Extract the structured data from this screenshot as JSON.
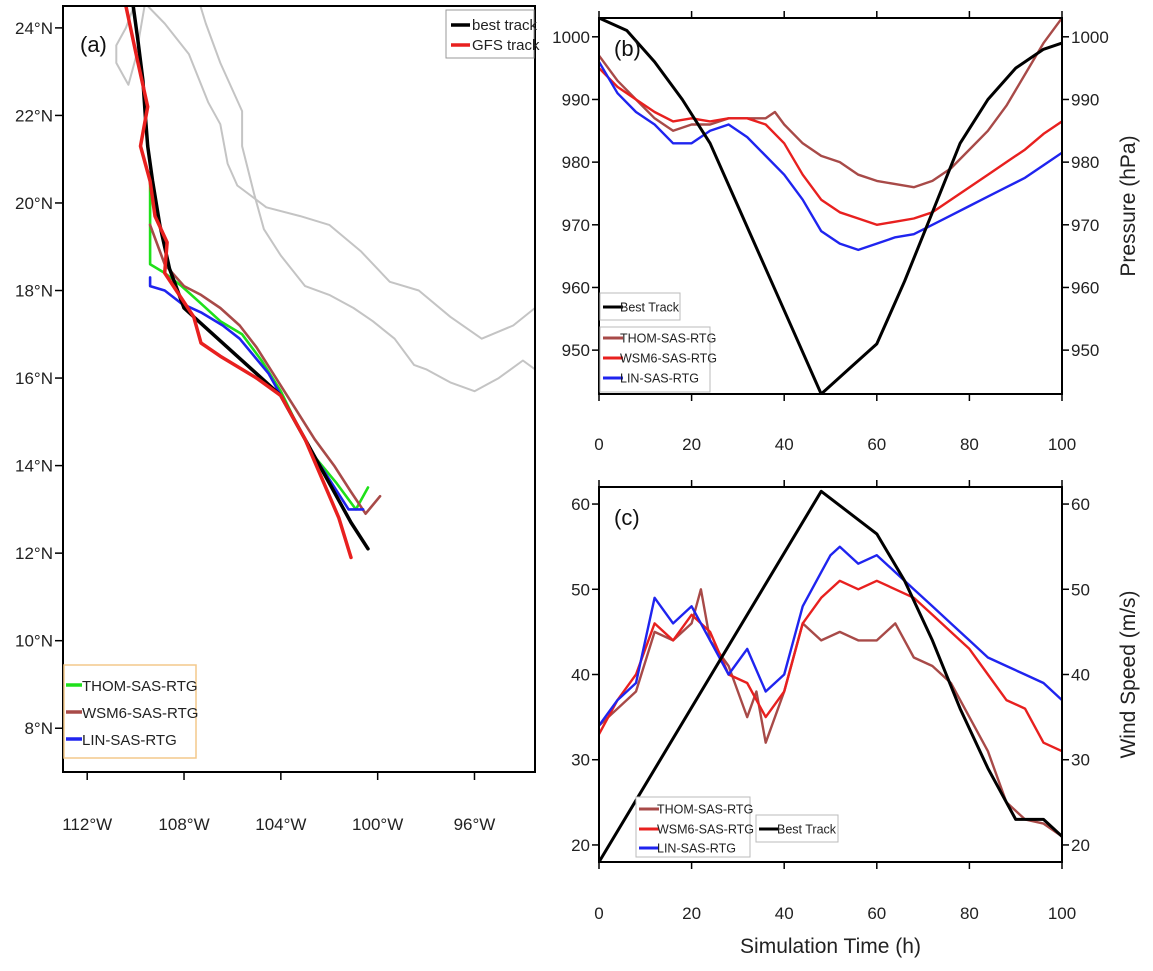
{
  "chart_data": [
    {
      "type": "line",
      "panel_label": "(a)",
      "xlabel": "",
      "ylabel": "",
      "xlim": [
        -113,
        -93.5
      ],
      "ylim": [
        7,
        24.5
      ],
      "x_ticks": [
        -112,
        -108,
        -104,
        -100,
        -96
      ],
      "x_tick_labels": [
        "112°W",
        "108°W",
        "104°W",
        "100°W",
        "96°W"
      ],
      "y_ticks": [
        8,
        10,
        12,
        14,
        16,
        18,
        20,
        22,
        24
      ],
      "y_tick_labels": [
        "8°N",
        "10°N",
        "12°N",
        "14°N",
        "16°N",
        "18°N",
        "20°N",
        "22°N",
        "24°N"
      ],
      "grid": false,
      "legend_top": {
        "placement": "top-right",
        "entries": [
          "best track",
          "GFS track"
        ]
      },
      "legend_bottom": {
        "placement": "bottom-left",
        "entries": [
          "THOM-SAS-RTG",
          "WSM6-SAS-RTG",
          "LIN-SAS-RTG"
        ]
      },
      "series": [
        {
          "name": "best track",
          "color": "#000000",
          "lon": [
            -100.4,
            -101.1,
            -102.0,
            -103.0,
            -104.0,
            -105.0,
            -106.0,
            -107.0,
            -108.0,
            -108.6,
            -109.0,
            -109.3,
            -109.5,
            -109.6,
            -109.7,
            -109.9,
            -110.1
          ],
          "lat": [
            12.1,
            12.7,
            13.6,
            14.6,
            15.6,
            16.1,
            16.6,
            17.1,
            17.6,
            18.5,
            19.5,
            20.5,
            21.3,
            22.0,
            22.8,
            23.7,
            24.5
          ]
        },
        {
          "name": "GFS track",
          "color": "#e8201f",
          "lon": [
            -101.1,
            -101.6,
            -102.3,
            -103.0,
            -104.0,
            -105.0,
            -106.5,
            -107.3,
            -107.6,
            -108.2,
            -108.8,
            -108.7,
            -109.2,
            -109.4,
            -109.8,
            -109.5,
            -109.9,
            -110.4
          ],
          "lat": [
            11.9,
            12.8,
            13.7,
            14.6,
            15.6,
            16.0,
            16.5,
            16.8,
            17.4,
            17.9,
            18.4,
            19.1,
            19.7,
            20.5,
            21.3,
            22.2,
            23.2,
            24.5
          ]
        },
        {
          "name": "THOM-SAS-RTG",
          "color": "#1fe01a",
          "lon": [
            -100.4,
            -100.9,
            -101.7,
            -102.6,
            -103.3,
            -104.0,
            -104.8,
            -105.6,
            -106.5,
            -107.3,
            -108.1,
            -108.8,
            -109.4,
            -109.4,
            -109.4
          ],
          "lat": [
            13.5,
            13.0,
            13.6,
            14.2,
            14.9,
            15.7,
            16.4,
            17.0,
            17.3,
            17.7,
            18.1,
            18.4,
            18.6,
            19.5,
            20.7
          ]
        },
        {
          "name": "WSM6-SAS-RTG",
          "color": "#a84a48",
          "lon": [
            -99.9,
            -100.5,
            -101.1,
            -101.8,
            -102.6,
            -103.4,
            -104.2,
            -105.0,
            -105.7,
            -106.5,
            -107.3,
            -108.0,
            -108.8,
            -109.4
          ],
          "lat": [
            13.3,
            12.9,
            13.4,
            14.0,
            14.6,
            15.3,
            16.0,
            16.7,
            17.2,
            17.6,
            17.9,
            18.1,
            18.6,
            19.5
          ]
        },
        {
          "name": "LIN-SAS-RTG",
          "color": "#1f24ef",
          "lon": [
            -100.6,
            -101.2,
            -101.9,
            -102.6,
            -103.2,
            -103.9,
            -104.5,
            -105.1,
            -105.7,
            -106.4,
            -107.3,
            -108.1,
            -108.8,
            -109.4,
            -109.4
          ],
          "lat": [
            13.0,
            13.0,
            13.6,
            14.2,
            14.8,
            15.5,
            16.1,
            16.5,
            16.9,
            17.2,
            17.5,
            17.7,
            18.0,
            18.1,
            18.3
          ]
        },
        {
          "name": "coastline",
          "color": "#c4c4c4",
          "lon": [
            -93.5,
            -94.0,
            -95.0,
            -96.0,
            -97.0,
            -98.0,
            -98.5,
            -99.3,
            -100.2,
            -101.0,
            -102.0,
            -103.0,
            -104.0,
            -104.7,
            -105.1,
            -105.6,
            -105.6,
            -106.5,
            -107.1,
            -107.6,
            -108.3,
            -108.9,
            -109.4,
            -110.0,
            -110.4,
            -110.8,
            -110.8,
            -110.5,
            -110.3,
            -110.0,
            -109.6
          ],
          "lat": [
            16.2,
            16.4,
            16.0,
            15.7,
            15.9,
            16.2,
            16.3,
            16.9,
            17.3,
            17.6,
            17.9,
            18.1,
            18.8,
            19.4,
            20.2,
            21.3,
            22.1,
            23.2,
            24.1,
            25.0,
            25.9,
            26.8,
            27.7,
            24.6,
            24.0,
            23.6,
            23.2,
            22.9,
            22.7,
            23.3,
            24.6
          ]
        },
        {
          "name": "state-border",
          "color": "#c4c4c4",
          "lon": [
            -109.5,
            -108.8,
            -107.8,
            -107.0,
            -106.5,
            -106.2,
            -105.8,
            -104.6,
            -103.2,
            -102.0,
            -100.7,
            -99.5,
            -98.3,
            -97.0,
            -95.7,
            -94.4,
            -93.5
          ],
          "lat": [
            24.5,
            24.1,
            23.4,
            22.3,
            21.8,
            20.9,
            20.4,
            19.9,
            19.7,
            19.5,
            18.9,
            18.2,
            18.0,
            17.4,
            16.9,
            17.2,
            17.6
          ]
        }
      ]
    },
    {
      "type": "line",
      "panel_label": "(b)",
      "xlabel": "",
      "ylabel": "Pressure (hPa)",
      "xlim": [
        0,
        100
      ],
      "ylim": [
        943,
        1003
      ],
      "x_ticks": [
        0,
        20,
        40,
        60,
        80,
        100
      ],
      "y_ticks": [
        950,
        960,
        970,
        980,
        990,
        1000
      ],
      "grid": false,
      "legend": {
        "placement": "bottom-left",
        "entries": [
          "Best Track",
          "THOM-SAS-RTG",
          "WSM6-SAS-RTG",
          "LIN-SAS-RTG"
        ]
      },
      "series": [
        {
          "name": "Best Track",
          "color": "#000000",
          "x": [
            0,
            6,
            12,
            18,
            24,
            30,
            36,
            42,
            48,
            54,
            60,
            66,
            72,
            78,
            84,
            90,
            96,
            100
          ],
          "y": [
            1003,
            1001,
            996,
            990,
            983,
            973,
            963,
            953,
            943,
            947,
            951,
            961,
            972,
            983,
            990,
            995,
            998,
            999
          ]
        },
        {
          "name": "THOM-SAS-RTG",
          "color": "#a84a48",
          "x": [
            0,
            4,
            8,
            12,
            16,
            20,
            24,
            28,
            32,
            36,
            38,
            40,
            44,
            48,
            52,
            56,
            60,
            64,
            68,
            72,
            76,
            80,
            84,
            88,
            92,
            96,
            100
          ],
          "y": [
            997,
            993,
            990,
            987,
            985,
            986,
            986,
            987,
            987,
            987,
            988,
            986,
            983,
            981,
            980,
            978,
            977,
            976.5,
            976,
            977,
            979,
            982,
            985,
            989,
            994,
            999,
            1003
          ]
        },
        {
          "name": "WSM6-SAS-RTG",
          "color": "#e8201f",
          "x": [
            0,
            4,
            8,
            12,
            16,
            20,
            24,
            28,
            32,
            36,
            40,
            44,
            48,
            52,
            56,
            60,
            64,
            68,
            72,
            76,
            80,
            84,
            88,
            92,
            96,
            100
          ],
          "y": [
            995,
            992,
            990,
            988,
            986.5,
            987,
            986.5,
            987,
            987,
            986,
            983,
            978,
            974,
            972,
            971,
            970,
            970.5,
            971,
            972,
            974,
            976,
            978,
            980,
            982,
            984.5,
            986.5
          ]
        },
        {
          "name": "LIN-SAS-RTG",
          "color": "#1f24ef",
          "x": [
            0,
            4,
            8,
            12,
            16,
            20,
            24,
            28,
            32,
            36,
            40,
            44,
            48,
            52,
            56,
            60,
            64,
            68,
            72,
            76,
            80,
            84,
            88,
            92,
            96,
            100
          ],
          "y": [
            996,
            991,
            988,
            986,
            983,
            983,
            985,
            986,
            984,
            981,
            978,
            974,
            969,
            967,
            966,
            967,
            968,
            968.5,
            970,
            971.5,
            973,
            974.5,
            976,
            977.5,
            979.5,
            981.5
          ]
        }
      ]
    },
    {
      "type": "line",
      "panel_label": "(c)",
      "xlabel": "Simulation Time (h)",
      "ylabel": "Wind Speed (m/s)",
      "xlim": [
        0,
        100
      ],
      "ylim": [
        18,
        62
      ],
      "x_ticks": [
        0,
        20,
        40,
        60,
        80,
        100
      ],
      "y_ticks": [
        20,
        30,
        40,
        50,
        60
      ],
      "grid": false,
      "legend": {
        "placement": "bottom-left",
        "entries": [
          "THOM-SAS-RTG",
          "WSM6-SAS-RTG",
          "LIN-SAS-RTG",
          "Best Track"
        ]
      },
      "series": [
        {
          "name": "Best Track",
          "color": "#000000",
          "x": [
            0,
            48,
            60,
            66,
            72,
            78,
            84,
            90,
            96,
            100
          ],
          "y": [
            18,
            61.5,
            56.5,
            51,
            44,
            36,
            29,
            23,
            23,
            21
          ]
        },
        {
          "name": "THOM-SAS-RTG",
          "color": "#a84a48",
          "x": [
            0,
            4,
            8,
            12,
            16,
            20,
            22,
            24,
            28,
            32,
            34,
            36,
            40,
            44,
            48,
            52,
            56,
            60,
            64,
            68,
            72,
            76,
            80,
            84,
            88,
            92,
            96,
            100
          ],
          "y": [
            34,
            36,
            38,
            45,
            44,
            46,
            50,
            44,
            41,
            35,
            38,
            32,
            38,
            46,
            44,
            45,
            44,
            44,
            46,
            42,
            41,
            39,
            35,
            31,
            25,
            23,
            22.5,
            21
          ]
        },
        {
          "name": "WSM6-SAS-RTG",
          "color": "#e8201f",
          "x": [
            0,
            4,
            8,
            12,
            16,
            20,
            24,
            28,
            32,
            36,
            40,
            44,
            48,
            52,
            56,
            60,
            64,
            68,
            72,
            76,
            80,
            84,
            88,
            92,
            96,
            100
          ],
          "y": [
            33,
            37,
            40,
            46,
            44,
            47,
            45,
            40,
            39,
            35,
            38,
            46,
            49,
            51,
            50,
            51,
            50,
            49,
            47,
            45,
            43,
            40,
            37,
            36,
            32,
            31
          ]
        },
        {
          "name": "LIN-SAS-RTG",
          "color": "#1f24ef",
          "x": [
            0,
            4,
            8,
            12,
            16,
            20,
            24,
            28,
            32,
            36,
            40,
            44,
            48,
            50,
            52,
            56,
            60,
            64,
            68,
            72,
            76,
            80,
            84,
            88,
            92,
            96,
            100
          ],
          "y": [
            34,
            37,
            39,
            49,
            46,
            48,
            44,
            40,
            43,
            38,
            40,
            48,
            52,
            54,
            55,
            53,
            54,
            52,
            50,
            48,
            46,
            44,
            42,
            41,
            40,
            39,
            37
          ]
        }
      ]
    }
  ]
}
